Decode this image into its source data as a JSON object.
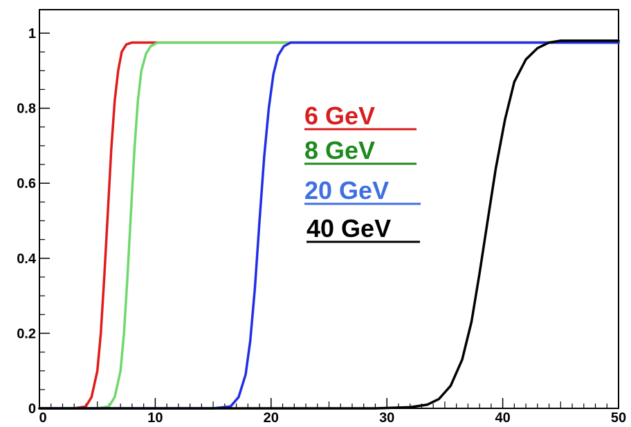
{
  "chart_data": {
    "type": "line",
    "title": "",
    "xlabel": "",
    "ylabel": "",
    "xlim": [
      0,
      50
    ],
    "ylim": [
      0,
      1.05
    ],
    "grid": false,
    "legend_placement": "center",
    "x_ticks": [
      "0",
      "10",
      "20",
      "30",
      "40",
      "50"
    ],
    "y_ticks": [
      "0",
      "0.2",
      "0.4",
      "0.6",
      "0.8",
      "1"
    ],
    "series": [
      {
        "name": "6   GeV",
        "color": "#e11b1b",
        "x": [
          3.0,
          4.0,
          4.5,
          5.0,
          5.3,
          5.6,
          5.9,
          6.2,
          6.5,
          6.8,
          7.1,
          7.5,
          8.0,
          9.0,
          12.0,
          20.0,
          30.0,
          40.0,
          50.0
        ],
        "y": [
          0,
          0.005,
          0.03,
          0.1,
          0.2,
          0.35,
          0.52,
          0.69,
          0.82,
          0.9,
          0.95,
          0.97,
          0.975,
          0.975,
          0.975,
          0.975,
          0.975,
          0.975,
          0.975
        ]
      },
      {
        "name": "8   GeV",
        "color": "#6ed86e",
        "x": [
          5.0,
          6.0,
          6.5,
          7.0,
          7.3,
          7.6,
          7.9,
          8.2,
          8.5,
          8.8,
          9.2,
          9.6,
          10.2,
          11.0,
          14.0,
          20.0,
          30.0,
          40.0,
          50.0
        ],
        "y": [
          0,
          0.005,
          0.03,
          0.1,
          0.2,
          0.35,
          0.52,
          0.69,
          0.82,
          0.9,
          0.945,
          0.965,
          0.975,
          0.975,
          0.975,
          0.975,
          0.975,
          0.975,
          0.975
        ]
      },
      {
        "name": "20 GeV",
        "color": "#1f2fe6",
        "x": [
          15.0,
          16.5,
          17.2,
          17.8,
          18.2,
          18.6,
          19.0,
          19.4,
          19.8,
          20.2,
          20.6,
          21.1,
          21.7,
          22.5,
          25.0,
          30.0,
          40.0,
          50.0
        ],
        "y": [
          0,
          0.005,
          0.03,
          0.09,
          0.18,
          0.32,
          0.5,
          0.67,
          0.8,
          0.89,
          0.94,
          0.965,
          0.975,
          0.975,
          0.975,
          0.975,
          0.975,
          0.975
        ]
      },
      {
        "name": "40 GeV",
        "color": "#000000",
        "x": [
          29.0,
          32.0,
          33.5,
          34.5,
          35.5,
          36.5,
          37.3,
          38.0,
          38.7,
          39.4,
          40.2,
          41.0,
          42.0,
          43.0,
          44.0,
          45.0,
          47.0,
          50.0
        ],
        "y": [
          0,
          0.003,
          0.01,
          0.025,
          0.06,
          0.13,
          0.23,
          0.36,
          0.5,
          0.64,
          0.77,
          0.87,
          0.93,
          0.96,
          0.975,
          0.98,
          0.98,
          0.98
        ]
      }
    ]
  },
  "legend": {
    "entries": [
      {
        "label": "6   GeV",
        "color": "#d81e1e"
      },
      {
        "label": "8   GeV",
        "color": "#1e8a1e"
      },
      {
        "label": "20 GeV",
        "color": "#3f6fe0"
      },
      {
        "label": "40 GeV",
        "color": "#000000"
      }
    ]
  }
}
